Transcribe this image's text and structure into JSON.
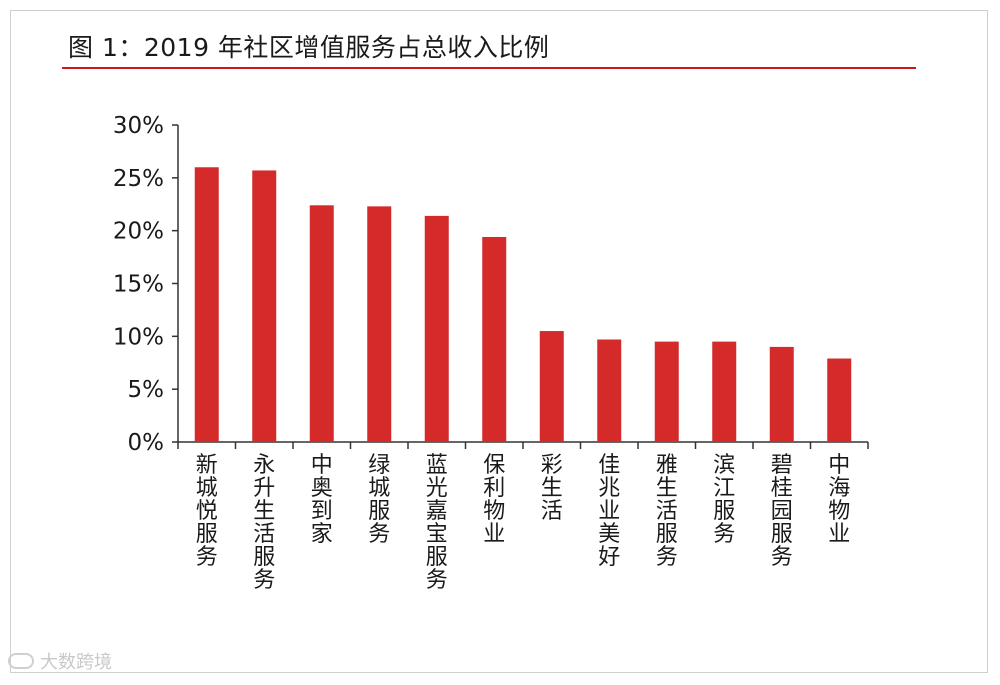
{
  "title": "图 1：2019 年社区增值服务占总收入比例",
  "watermark": "大数跨境",
  "colors": {
    "bar": "#d42a2a",
    "rule": "#c8191f",
    "axis": "#333333"
  },
  "icons": {
    "watermark": "brand-logo-icon"
  },
  "chart_data": {
    "type": "bar",
    "categories": [
      "新城悦服务",
      "永升生活服务",
      "中奥到家",
      "绿城服务",
      "蓝光嘉宝服务",
      "保利物业",
      "彩生活",
      "佳兆业美好",
      "雅生活服务",
      "滨江服务",
      "碧桂园服务",
      "中海物业"
    ],
    "values": [
      26.0,
      25.7,
      22.4,
      22.3,
      21.4,
      19.4,
      10.5,
      9.7,
      9.5,
      9.5,
      9.0,
      7.9
    ],
    "y_ticks": [
      "0%",
      "5%",
      "10%",
      "15%",
      "20%",
      "25%",
      "30%"
    ],
    "ylim": [
      0,
      30
    ],
    "grid": false,
    "legend": "none"
  }
}
